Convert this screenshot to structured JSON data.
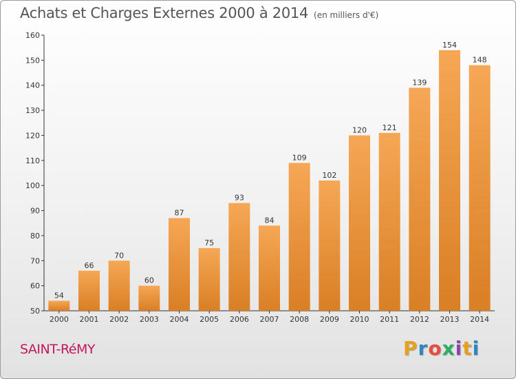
{
  "header": {
    "title": "Achats et Charges Externes 2000 à 2014",
    "subtitle": "(en milliers d'€)"
  },
  "footer": {
    "place": "SAINT-RéMY",
    "logo_letters": [
      "P",
      "r",
      "o",
      "x",
      "i",
      "t",
      "i"
    ],
    "logo_colors": [
      "#e6a020",
      "#2e86c1",
      "#e74c3c",
      "#27ae60",
      "#8e44ad",
      "#e6a020",
      "#2e86c1"
    ]
  },
  "chart_data": {
    "type": "bar",
    "categories": [
      "2000",
      "2001",
      "2002",
      "2003",
      "2004",
      "2005",
      "2006",
      "2007",
      "2008",
      "2009",
      "2010",
      "2011",
      "2012",
      "2013",
      "2014"
    ],
    "values": [
      54,
      66,
      70,
      60,
      87,
      75,
      93,
      84,
      109,
      102,
      120,
      121,
      139,
      154,
      148
    ],
    "ylim": [
      50,
      160
    ],
    "yticks": [
      50,
      60,
      70,
      80,
      90,
      100,
      110,
      120,
      130,
      140,
      150,
      160
    ],
    "grid": false,
    "bar_color_light": "#f6a755",
    "bar_color_dark": "#d97f25"
  }
}
